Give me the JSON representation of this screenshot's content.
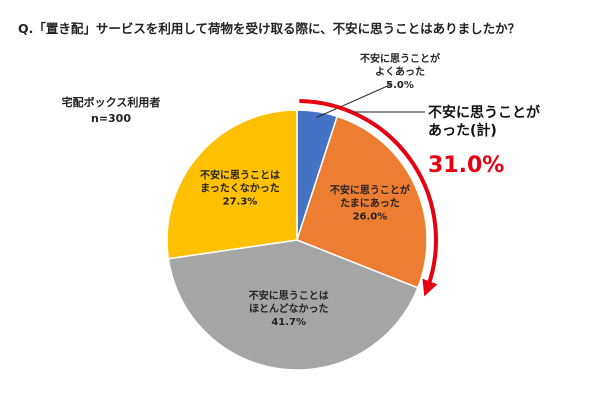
{
  "question": "Q.「置き配」サービスを利用して荷物を受け取る際に、不安に思うことはありましたか？",
  "respondents": {
    "label": "宅配ボックス利用者",
    "n": "n=300"
  },
  "chart_data": {
    "type": "pie",
    "title": "Q.「置き配」サービスを利用して荷物を受け取る際に、不安に思うことはありましたか？",
    "slices": [
      {
        "label_lines": [
          "不安に思うことが",
          "よくあった"
        ],
        "value": 5.0,
        "value_text": "5.0%",
        "color": "#4472c4"
      },
      {
        "label_lines": [
          "不安に思うことが",
          "たまにあった"
        ],
        "value": 26.0,
        "value_text": "26.0%",
        "color": "#ed7d31"
      },
      {
        "label_lines": [
          "不安に思うことは",
          "ほとんどなかった"
        ],
        "value": 41.7,
        "value_text": "41.7%",
        "color": "#a5a5a5"
      },
      {
        "label_lines": [
          "不安に思うことは",
          "まったくなかった"
        ],
        "value": 27.3,
        "value_text": "27.3%",
        "color": "#ffc000"
      }
    ],
    "start_angle_deg": 0,
    "direction": "clockwise",
    "callout": {
      "label_lines": [
        "不安に思うことが",
        "あった(計)"
      ],
      "value": 31.0,
      "value_text": "31.0%",
      "color": "#e60012",
      "covers_slices": [
        0,
        1
      ]
    }
  }
}
